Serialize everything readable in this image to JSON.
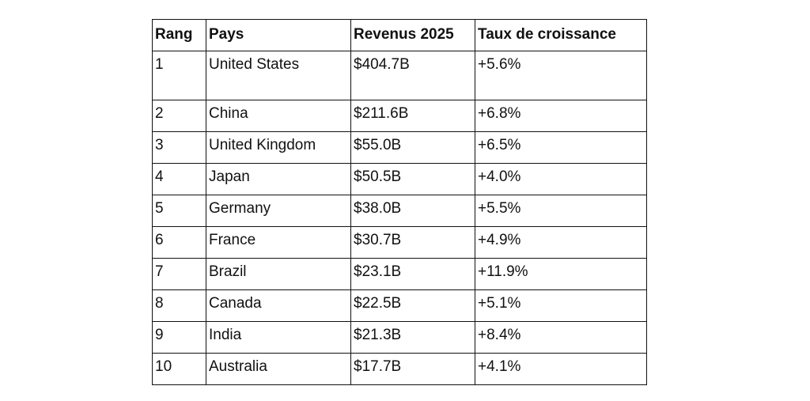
{
  "table": {
    "headers": [
      "Rang",
      "Pays",
      "Revenus 2025",
      "Taux de croissance"
    ],
    "rows": [
      [
        "1",
        "United States",
        "$404.7B",
        "+5.6%"
      ],
      [
        "2",
        "China",
        "$211.6B",
        "+6.8%"
      ],
      [
        "3",
        "United Kingdom",
        "$55.0B",
        "+6.5%"
      ],
      [
        "4",
        "Japan",
        "$50.5B",
        "+4.0%"
      ],
      [
        "5",
        "Germany",
        "$38.0B",
        "+5.5%"
      ],
      [
        "6",
        "France",
        "$30.7B",
        "+4.9%"
      ],
      [
        "7",
        "Brazil",
        "$23.1B",
        "+11.9%"
      ],
      [
        "8",
        "Canada",
        "$22.5B",
        "+5.1%"
      ],
      [
        "9",
        "India",
        "$21.3B",
        "+8.4%"
      ],
      [
        "10",
        "Australia",
        "$17.7B",
        "+4.1%"
      ]
    ]
  }
}
